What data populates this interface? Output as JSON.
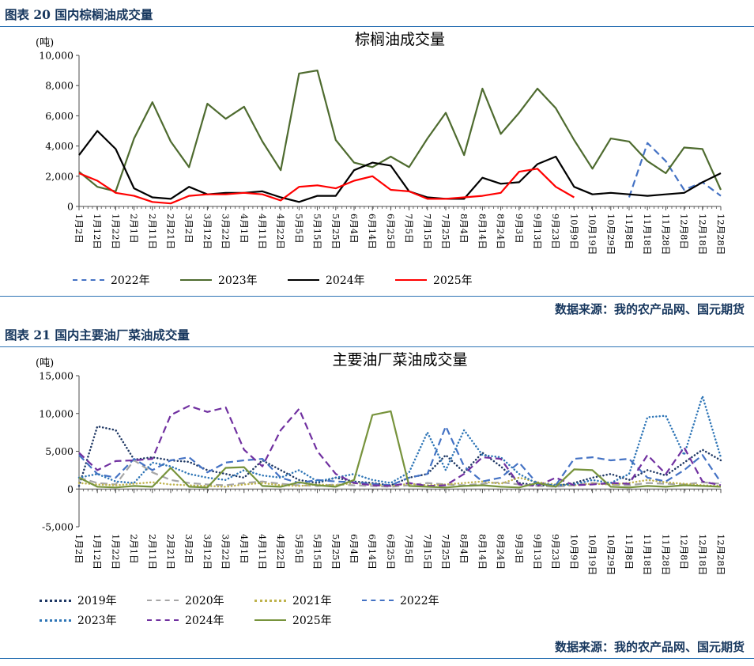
{
  "page": {
    "figure20_caption": "图表 20 国内棕榈油成交量",
    "figure21_caption": "图表 21 国内主要油厂菜油成交量",
    "source_label": "数据来源：我的农产品网、国元期货",
    "heading_color": "#17375E",
    "rule_color": "#2E74B5"
  },
  "chart_data": [
    {
      "type": "line",
      "title": "棕榈油成交量",
      "unit_label": "(吨)",
      "ylim": [
        0,
        10000
      ],
      "yticks": [
        0,
        2000,
        4000,
        6000,
        8000,
        10000
      ],
      "grid": false,
      "legend_position": "bottom",
      "categories": [
        "1月2日",
        "1月12日",
        "1月22日",
        "2月1日",
        "2月11日",
        "2月21日",
        "3月2日",
        "3月12日",
        "3月22日",
        "4月1日",
        "4月11日",
        "4月22日",
        "5月5日",
        "5月15日",
        "5月25日",
        "6月4日",
        "6月14日",
        "6月25日",
        "7月5日",
        "7月15日",
        "7月25日",
        "8月4日",
        "8月14日",
        "8月24日",
        "9月3日",
        "9月13日",
        "9月23日",
        "10月9日",
        "10月19日",
        "10月29日",
        "11月8日",
        "11月18日",
        "11月28日",
        "12月8日",
        "12月18日",
        "12月28日"
      ],
      "legend_rows": [
        [
          0,
          1,
          2,
          3
        ]
      ],
      "series": [
        {
          "name": "2022年",
          "color": "#4472C4",
          "style": "dashed",
          "values": [
            null,
            null,
            null,
            null,
            null,
            null,
            null,
            null,
            null,
            null,
            null,
            null,
            null,
            null,
            null,
            null,
            null,
            null,
            null,
            null,
            null,
            null,
            null,
            null,
            null,
            null,
            null,
            null,
            null,
            null,
            600,
            4200,
            3000,
            1100,
            1600,
            700
          ]
        },
        {
          "name": "2023年",
          "color": "#4E6B2F",
          "style": "solid",
          "values": [
            2300,
            1300,
            1000,
            4500,
            6900,
            4300,
            2600,
            6800,
            5800,
            6600,
            4300,
            2400,
            8800,
            9000,
            4400,
            2900,
            2600,
            3300,
            2600,
            4500,
            6200,
            3400,
            7800,
            4800,
            6200,
            7800,
            6500,
            4400,
            2500,
            4500,
            4300,
            3000,
            2200,
            3900,
            3800,
            1100
          ]
        },
        {
          "name": "2024年",
          "color": "#000000",
          "style": "solid",
          "values": [
            3400,
            5000,
            3800,
            1200,
            600,
            500,
            1300,
            800,
            900,
            900,
            1000,
            600,
            300,
            700,
            700,
            2400,
            2900,
            2700,
            1000,
            600,
            500,
            500,
            1900,
            1500,
            1600,
            2800,
            3300,
            1300,
            800,
            900,
            800,
            700,
            800,
            900,
            1600,
            2200
          ]
        },
        {
          "name": "2025年",
          "color": "#FF0000",
          "style": "solid",
          "values": [
            2200,
            1700,
            900,
            700,
            300,
            200,
            700,
            800,
            800,
            900,
            800,
            400,
            1300,
            1400,
            1200,
            1700,
            2000,
            1100,
            1000,
            500,
            500,
            600,
            700,
            900,
            2300,
            2500,
            1300,
            600,
            null,
            null,
            null,
            null,
            null,
            null,
            null,
            null
          ]
        }
      ]
    },
    {
      "type": "line",
      "title": "主要油厂菜油成交量",
      "unit_label": "(吨)",
      "ylim": [
        -5000,
        15000
      ],
      "yticks": [
        -5000,
        0,
        5000,
        10000,
        15000
      ],
      "grid": false,
      "legend_position": "bottom",
      "categories": [
        "1月2日",
        "1月12日",
        "1月22日",
        "2月1日",
        "2月11日",
        "2月21日",
        "3月2日",
        "3月12日",
        "3月22日",
        "4月1日",
        "4月11日",
        "4月22日",
        "5月5日",
        "5月15日",
        "5月25日",
        "6月4日",
        "6月14日",
        "6月25日",
        "7月5日",
        "7月15日",
        "7月25日",
        "8月4日",
        "8月14日",
        "8月24日",
        "9月3日",
        "9月13日",
        "9月23日",
        "10月9日",
        "10月19日",
        "10月29日",
        "11月8日",
        "11月18日",
        "11月28日",
        "12月8日",
        "12月18日",
        "12月28日"
      ],
      "legend_rows": [
        [
          0,
          1,
          2,
          3
        ],
        [
          4,
          5,
          6
        ]
      ],
      "series": [
        {
          "name": "2019年",
          "color": "#1F3864",
          "style": "dotted",
          "values": [
            400,
            8300,
            7800,
            3900,
            4200,
            3800,
            3600,
            2500,
            2000,
            1500,
            3800,
            2500,
            1200,
            800,
            1500,
            1000,
            800,
            500,
            1500,
            2000,
            4500,
            2200,
            4800,
            3000,
            800,
            500,
            400,
            800,
            1500,
            2000,
            1200,
            2500,
            1800,
            3500,
            5200,
            3800
          ]
        },
        {
          "name": "2020年",
          "color": "#A6A6A6",
          "style": "dashed",
          "values": [
            1500,
            800,
            600,
            3800,
            2200,
            1200,
            800,
            600,
            500,
            800,
            1000,
            700,
            500,
            400,
            600,
            500,
            400,
            300,
            500,
            800,
            600,
            500,
            700,
            900,
            600,
            400,
            300,
            500,
            800,
            600,
            500,
            800,
            700,
            600,
            900,
            700
          ]
        },
        {
          "name": "2021年",
          "color": "#BFB34D",
          "style": "dotted",
          "values": [
            800,
            600,
            500,
            700,
            900,
            600,
            500,
            400,
            300,
            600,
            800,
            500,
            400,
            600,
            500,
            800,
            600,
            400,
            700,
            500,
            600,
            800,
            1000,
            700,
            1500,
            900,
            600,
            500,
            700,
            600,
            800,
            1200,
            900,
            700,
            500,
            400
          ]
        },
        {
          "name": "2022年",
          "color": "#4472C4",
          "style": "dashed",
          "values": [
            4500,
            2000,
            1500,
            4000,
            2500,
            3800,
            4200,
            2200,
            3500,
            3800,
            4000,
            1500,
            800,
            1200,
            1000,
            900,
            700,
            500,
            1500,
            2000,
            8300,
            3000,
            1000,
            1500,
            3500,
            700,
            500,
            4000,
            4200,
            3800,
            4000,
            1500,
            1000,
            2500,
            4500,
            900
          ]
        },
        {
          "name": "2023年",
          "color": "#2E75B6",
          "style": "dotted",
          "values": [
            1500,
            2000,
            1000,
            800,
            3500,
            3000,
            2000,
            1500,
            1200,
            2500,
            1800,
            1500,
            2500,
            1000,
            1500,
            2000,
            1200,
            800,
            2200,
            7500,
            2500,
            7800,
            4500,
            4200,
            2000,
            700,
            500,
            600,
            1200,
            800,
            2000,
            9500,
            9700,
            4500,
            12300,
            4200
          ]
        },
        {
          "name": "2024年",
          "color": "#7030A0",
          "style": "dashed",
          "values": [
            4800,
            2500,
            3700,
            3800,
            4000,
            9800,
            11000,
            10200,
            10800,
            5200,
            3000,
            7800,
            10600,
            5000,
            2000,
            800,
            500,
            400,
            800,
            400,
            500,
            2000,
            4200,
            4000,
            600,
            400,
            1500,
            500,
            600,
            800,
            700,
            4500,
            2000,
            5500,
            1000,
            500
          ]
        },
        {
          "name": "2025年",
          "color": "#77933C",
          "style": "solid",
          "values": [
            1500,
            300,
            200,
            400,
            300,
            2800,
            300,
            200,
            2800,
            2900,
            400,
            300,
            900,
            500,
            300,
            1200,
            9800,
            10300,
            400,
            300,
            200,
            400,
            500,
            300,
            200,
            800,
            300,
            2600,
            2500,
            300,
            200,
            400,
            300,
            500,
            400,
            300
          ]
        }
      ]
    }
  ]
}
